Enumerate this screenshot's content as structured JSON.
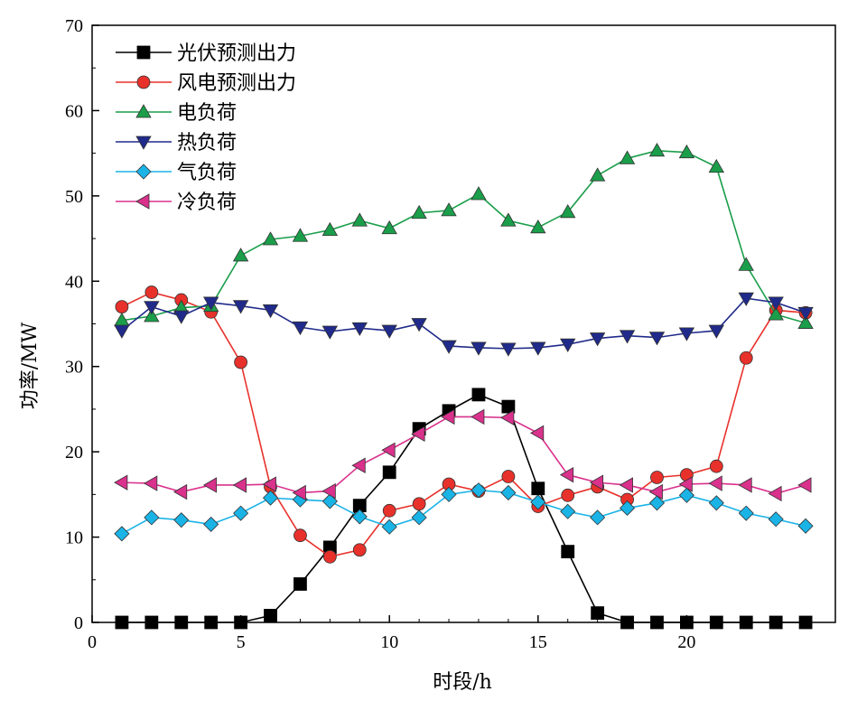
{
  "chart_data": {
    "type": "line",
    "xlabel": "时段/h",
    "ylabel": "功率/MW",
    "xlim": [
      0,
      25
    ],
    "ylim": [
      0,
      70
    ],
    "xticks": [
      0,
      5,
      10,
      15,
      20
    ],
    "yticks": [
      0,
      10,
      20,
      30,
      40,
      50,
      60,
      70
    ],
    "grid": false,
    "legend_position": "top-left",
    "x": [
      1,
      2,
      3,
      4,
      5,
      6,
      7,
      8,
      9,
      10,
      11,
      12,
      13,
      14,
      15,
      16,
      17,
      18,
      19,
      20,
      21,
      22,
      23,
      24
    ],
    "series": [
      {
        "name": "光伏预测出力",
        "color": "#000000",
        "marker": "square",
        "values": [
          0,
          0,
          0,
          0,
          0,
          0.8,
          4.5,
          8.8,
          13.7,
          17.6,
          22.7,
          24.8,
          26.7,
          25.3,
          15.7,
          8.3,
          1.1,
          0,
          0,
          0,
          0,
          0,
          0,
          0
        ]
      },
      {
        "name": "风电预测出力",
        "color": "#e8312b",
        "marker": "circle",
        "values": [
          37.0,
          38.7,
          37.8,
          36.4,
          30.5,
          15.9,
          10.2,
          7.7,
          8.5,
          13.1,
          13.9,
          16.2,
          15.4,
          17.1,
          13.6,
          14.9,
          15.9,
          14.4,
          17.0,
          17.3,
          18.3,
          31.0,
          36.6,
          36.3
        ]
      },
      {
        "name": "电负荷",
        "color": "#1a9e4a",
        "marker": "triangle-up",
        "values": [
          35.4,
          35.9,
          36.9,
          37.1,
          43.0,
          44.9,
          45.3,
          46.0,
          47.1,
          46.2,
          48.0,
          48.3,
          50.2,
          47.1,
          46.3,
          48.1,
          52.4,
          54.4,
          55.3,
          55.1,
          53.4,
          41.9,
          36.1,
          35.1
        ]
      },
      {
        "name": "热负荷",
        "color": "#1f2a8a",
        "marker": "triangle-down",
        "values": [
          34.2,
          37.0,
          35.9,
          37.5,
          37.1,
          36.6,
          34.6,
          34.1,
          34.5,
          34.2,
          35.0,
          32.4,
          32.2,
          32.1,
          32.2,
          32.6,
          33.3,
          33.6,
          33.4,
          33.9,
          34.2,
          38.0,
          37.5,
          36.3
        ]
      },
      {
        "name": "气负荷",
        "color": "#1ab3e6",
        "marker": "diamond",
        "values": [
          10.4,
          12.3,
          12.0,
          11.5,
          12.8,
          14.6,
          14.4,
          14.2,
          12.4,
          11.2,
          12.3,
          15.0,
          15.5,
          15.2,
          14.1,
          13.0,
          12.3,
          13.4,
          14.0,
          14.9,
          14.0,
          12.8,
          12.1,
          11.3
        ]
      },
      {
        "name": "冷负荷",
        "color": "#d9318c",
        "marker": "triangle-left",
        "values": [
          16.4,
          16.3,
          15.3,
          16.1,
          16.1,
          16.2,
          15.2,
          15.4,
          18.4,
          20.2,
          22.1,
          24.1,
          24.1,
          24.0,
          22.2,
          17.3,
          16.4,
          16.1,
          15.3,
          16.2,
          16.3,
          16.1,
          15.1,
          16.1
        ]
      }
    ]
  }
}
